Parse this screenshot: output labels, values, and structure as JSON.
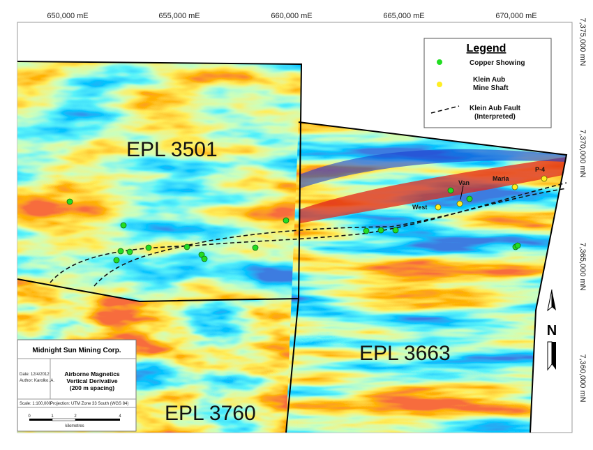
{
  "grid": {
    "x_labels": [
      "650,000 mE",
      "655,000 mE",
      "660,000 mE",
      "665,000 mE",
      "670,000 mE"
    ],
    "y_labels": [
      "7,375,000 mN",
      "7,370,000 mN",
      "7,365,000 mN",
      "7,360,000 mN"
    ]
  },
  "legend": {
    "title": "Legend",
    "copper": "Copper Showing",
    "shaft": [
      "Klein Aub",
      "Mine Shaft"
    ],
    "fault": [
      "Klein Aub Fault",
      "(Interpreted)"
    ]
  },
  "tenements": [
    "EPL 3501",
    "EPL 3663",
    "EPL 3760"
  ],
  "mine_labels": [
    "Van",
    "West",
    "Maria",
    "P-4"
  ],
  "north": "N",
  "title_block": {
    "company": "Midnight Sun Mining Corp.",
    "date": "Date: 12/4/2012",
    "author": "Author: Karolko, A.",
    "map_title": [
      "Airborne Magnetics",
      "Vertical Derivative",
      "(200 m spacing)"
    ],
    "scale": "Scale: 1:100,000",
    "projection": "Projection: UTM Zone 33 South (WGS 84)",
    "scale_bar": [
      "0",
      "1",
      "2",
      "4"
    ],
    "unit": "kilometres"
  }
}
